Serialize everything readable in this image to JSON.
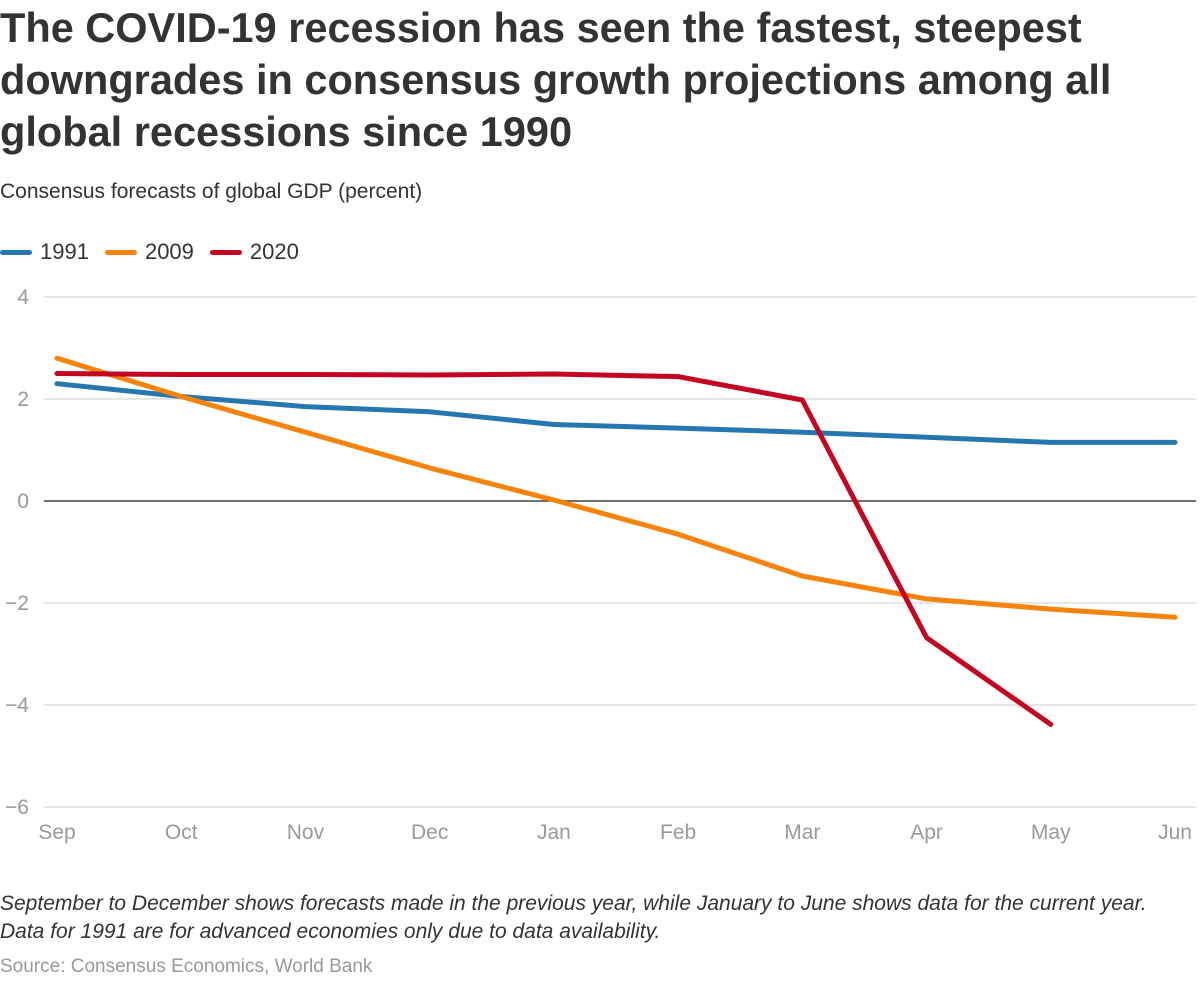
{
  "chart_data": {
    "type": "line",
    "title": "The COVID-19 recession has seen the fastest, steepest downgrades in consensus growth projections among all global recessions since 1990",
    "subtitle": "Consensus forecasts of global GDP (percent)",
    "categories": [
      "Sep",
      "Oct",
      "Nov",
      "Dec",
      "Jan",
      "Feb",
      "Mar",
      "Apr",
      "May",
      "Jun"
    ],
    "series": [
      {
        "name": "1991",
        "color": "#2676b0",
        "values": [
          2.3,
          2.05,
          1.85,
          1.75,
          1.5,
          1.43,
          1.35,
          1.25,
          1.15,
          1.15
        ]
      },
      {
        "name": "2009",
        "color": "#f5830c",
        "values": [
          2.8,
          2.05,
          1.35,
          0.65,
          0.02,
          -0.65,
          -1.47,
          -1.92,
          -2.12,
          -2.28
        ]
      },
      {
        "name": "2020",
        "color": "#c40521",
        "values": [
          2.5,
          2.48,
          2.48,
          2.47,
          2.49,
          2.44,
          1.98,
          -2.68,
          -4.38,
          null
        ]
      }
    ],
    "ylim": [
      -6,
      4
    ],
    "yticks": [
      4,
      2,
      0,
      -2,
      -4,
      -6
    ],
    "ytick_labels": [
      "4",
      "2",
      "0",
      "−2",
      "−4",
      "−6"
    ],
    "grid": true,
    "legend_position": "top-left",
    "note": "September to December shows forecasts made in the previous year, while January to June shows data for the current year. Data for 1991 are for advanced economies only due to data availability.",
    "source": "Source: Consensus Economics, World Bank"
  }
}
